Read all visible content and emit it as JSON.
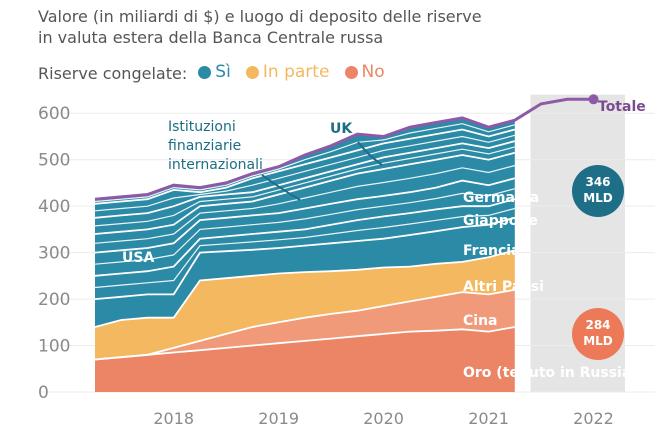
{
  "header": {
    "title_line1": "Valore (in miliardi di $) e luogo di deposito delle riserve",
    "title_line2": "in valuta estera della Banca Centrale russa"
  },
  "legend": {
    "label": "Riserve congelate:",
    "items": [
      {
        "name": "Sì",
        "color": "#2b8aa6"
      },
      {
        "name": "In parte",
        "color": "#f4b860"
      },
      {
        "name": "No",
        "color": "#ec8566"
      }
    ]
  },
  "chart_data": {
    "type": "area",
    "title": "Valore (in miliardi di $) e luogo di deposito delle riserve in valuta estera della Banca Centrale russa",
    "ylim": [
      0,
      650
    ],
    "xlim": [
      2017.25,
      2022.3
    ],
    "y_ticks": [
      "0",
      "100",
      "200",
      "300",
      "400",
      "500",
      "600"
    ],
    "x_ticks": [
      {
        "label": "2018",
        "x": 2018.0
      },
      {
        "label": "2019",
        "x": 2019.0
      },
      {
        "label": "2020",
        "x": 2020.0
      },
      {
        "label": "2021",
        "x": 2021.0
      },
      {
        "label": "2022",
        "x": 2022.0
      }
    ],
    "x": [
      2017.25,
      2017.5,
      2017.75,
      2018.0,
      2018.25,
      2018.5,
      2018.75,
      2019.0,
      2019.25,
      2019.5,
      2019.75,
      2020.0,
      2020.25,
      2020.5,
      2020.75,
      2021.0,
      2021.25
    ],
    "stacked_boundaries": [
      {
        "name": "Oro (tenuto in Russia)",
        "color": "#ec8566",
        "values": [
          70,
          75,
          80,
          85,
          90,
          95,
          100,
          105,
          110,
          115,
          120,
          125,
          130,
          132,
          135,
          130,
          140
        ]
      },
      {
        "name": "Cina",
        "color": "#f09a7a",
        "values": [
          70,
          75,
          80,
          95,
          110,
          125,
          140,
          150,
          160,
          168,
          175,
          185,
          195,
          205,
          215,
          210,
          220
        ]
      },
      {
        "name": "Altri Paesi",
        "color": "#f4b860",
        "values": [
          140,
          155,
          160,
          160,
          240,
          245,
          250,
          255,
          258,
          260,
          263,
          268,
          270,
          276,
          280,
          290,
          305
        ]
      },
      {
        "name": "USA",
        "color": "#2b8aa6",
        "values": [
          200,
          205,
          210,
          210,
          300,
          303,
          306,
          310,
          315,
          320,
          325,
          330,
          338,
          346,
          355,
          360,
          375
        ]
      },
      {
        "name": "Francia",
        "color": "#2b8aa6",
        "values": [
          250,
          255,
          260,
          270,
          330,
          335,
          340,
          345,
          350,
          360,
          370,
          378,
          385,
          393,
          400,
          400,
          415
        ]
      },
      {
        "name": "Giappone",
        "color": "#2b8aa6",
        "values": [
          300,
          305,
          310,
          320,
          370,
          375,
          380,
          385,
          395,
          405,
          415,
          422,
          430,
          440,
          455,
          445,
          460
        ]
      },
      {
        "name": "Germania",
        "color": "#2b8aa6",
        "values": [
          340,
          345,
          350,
          360,
          400,
          405,
          410,
          425,
          440,
          455,
          470,
          480,
          490,
          500,
          510,
          500,
          515
        ]
      },
      {
        "name": "Istituzioni finanziarie internazionali",
        "color": "#2b8aa6",
        "values": [
          375,
          380,
          385,
          400,
          420,
          425,
          430,
          445,
          460,
          475,
          490,
          505,
          515,
          525,
          535,
          525,
          540
        ]
      },
      {
        "name": "UK",
        "color": "#2b8aa6",
        "values": [
          405,
          410,
          415,
          435,
          430,
          440,
          460,
          475,
          490,
          505,
          520,
          535,
          545,
          555,
          565,
          550,
          565
        ]
      },
      {
        "name": "Totale",
        "color": "#2b8aa6",
        "values": [
          415,
          420,
          425,
          445,
          440,
          450,
          470,
          485,
          510,
          530,
          555,
          550,
          570,
          580,
          590,
          570,
          585
        ]
      }
    ],
    "white_lines_count": 14,
    "total_line": {
      "color": "#8e5aa8",
      "extra_x": [
        2021.5,
        2021.75,
        2022.0
      ],
      "extra_y": [
        620,
        630,
        630
      ]
    },
    "labels": {
      "usa": "USA",
      "germania": "Germania",
      "giappone": "Giappone",
      "francia": "Francia",
      "altri": "Altri Paesi",
      "cina": "Cina",
      "oro": "Oro (tenuto in Russia)",
      "istituzioni_1": "Istituzioni",
      "istituzioni_2": "finanziarie",
      "istituzioni_3": "internazionali",
      "uk": "UK",
      "totale": "Totale"
    },
    "badges": [
      {
        "line1": "346",
        "line2": "MLD",
        "color": "#1d6e86"
      },
      {
        "line1": "284",
        "line2": "MLD",
        "color": "#ec7a58"
      }
    ],
    "band_2022_color": "#e5e5e5"
  }
}
